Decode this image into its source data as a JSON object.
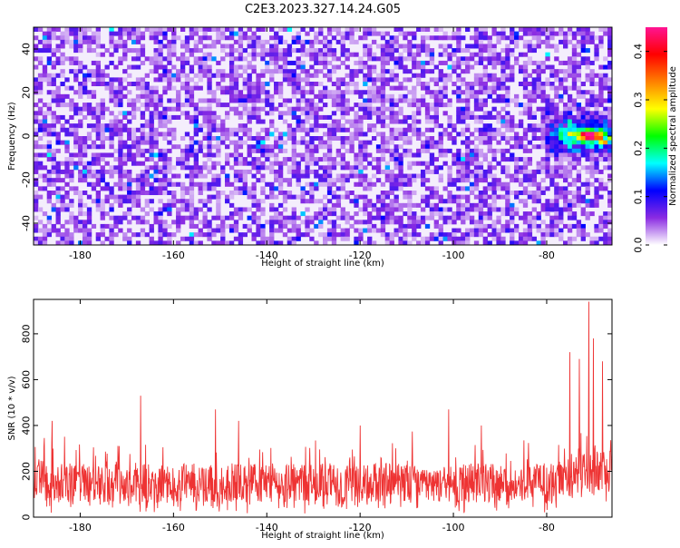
{
  "figure": {
    "title": "C2E3.2023.327.14.24.G05"
  },
  "chart_data": [
    {
      "type": "heatmap",
      "title": "C2E3.2023.327.14.24.G05",
      "xlabel": "Height of straight line (km)",
      "ylabel": "Frequency (Hz)",
      "xlim": [
        -190,
        -66
      ],
      "ylim": [
        -50,
        50
      ],
      "xticks": [
        -180,
        -160,
        -140,
        -120,
        -100,
        -80
      ],
      "yticks": [
        -40,
        -20,
        0,
        20,
        40
      ],
      "colorbar": {
        "label": "Normalized spectral amplitude",
        "range": [
          0,
          0.45
        ],
        "ticks": [
          0.0,
          0.1,
          0.2,
          0.3,
          0.4
        ],
        "tick_labels": [
          "0.0",
          "0.1",
          "0.2",
          "0.3",
          "0.4"
        ],
        "colormap": [
          "#ffffff",
          "#8a2be2",
          "#0000ff",
          "#00ffff",
          "#00ff00",
          "#ffff00",
          "#ff8000",
          "#ff0000",
          "#ff1493"
        ]
      },
      "noise_level": 0.06,
      "features": [
        {
          "x_range": [
            -82,
            -66
          ],
          "freq_center": 0,
          "freq_width": 7,
          "peak_amplitude": 0.42,
          "peak_x": -71,
          "description": "strong signal"
        }
      ],
      "grid": false
    },
    {
      "type": "line",
      "xlabel": "Height of straight line (km)",
      "ylabel": "SNR (10 * v/v)",
      "xlim": [
        -190,
        -66
      ],
      "ylim": [
        0,
        950
      ],
      "xticks": [
        -180,
        -160,
        -140,
        -120,
        -100,
        -80
      ],
      "yticks": [
        0,
        200,
        400,
        600,
        800
      ],
      "series": [
        {
          "color": "#ee3333",
          "baseline_mean": 150,
          "baseline_noise_max": 320,
          "spikes": [
            {
              "x": -186,
              "y": 420
            },
            {
              "x": -167,
              "y": 530
            },
            {
              "x": -151,
              "y": 470
            },
            {
              "x": -146,
              "y": 420
            },
            {
              "x": -120,
              "y": 400
            },
            {
              "x": -101,
              "y": 470
            },
            {
              "x": -94,
              "y": 400
            },
            {
              "x": -75,
              "y": 720
            },
            {
              "x": -73,
              "y": 690
            },
            {
              "x": -71,
              "y": 940
            },
            {
              "x": -70,
              "y": 780
            },
            {
              "x": -68,
              "y": 680
            }
          ]
        }
      ],
      "grid": false
    }
  ]
}
